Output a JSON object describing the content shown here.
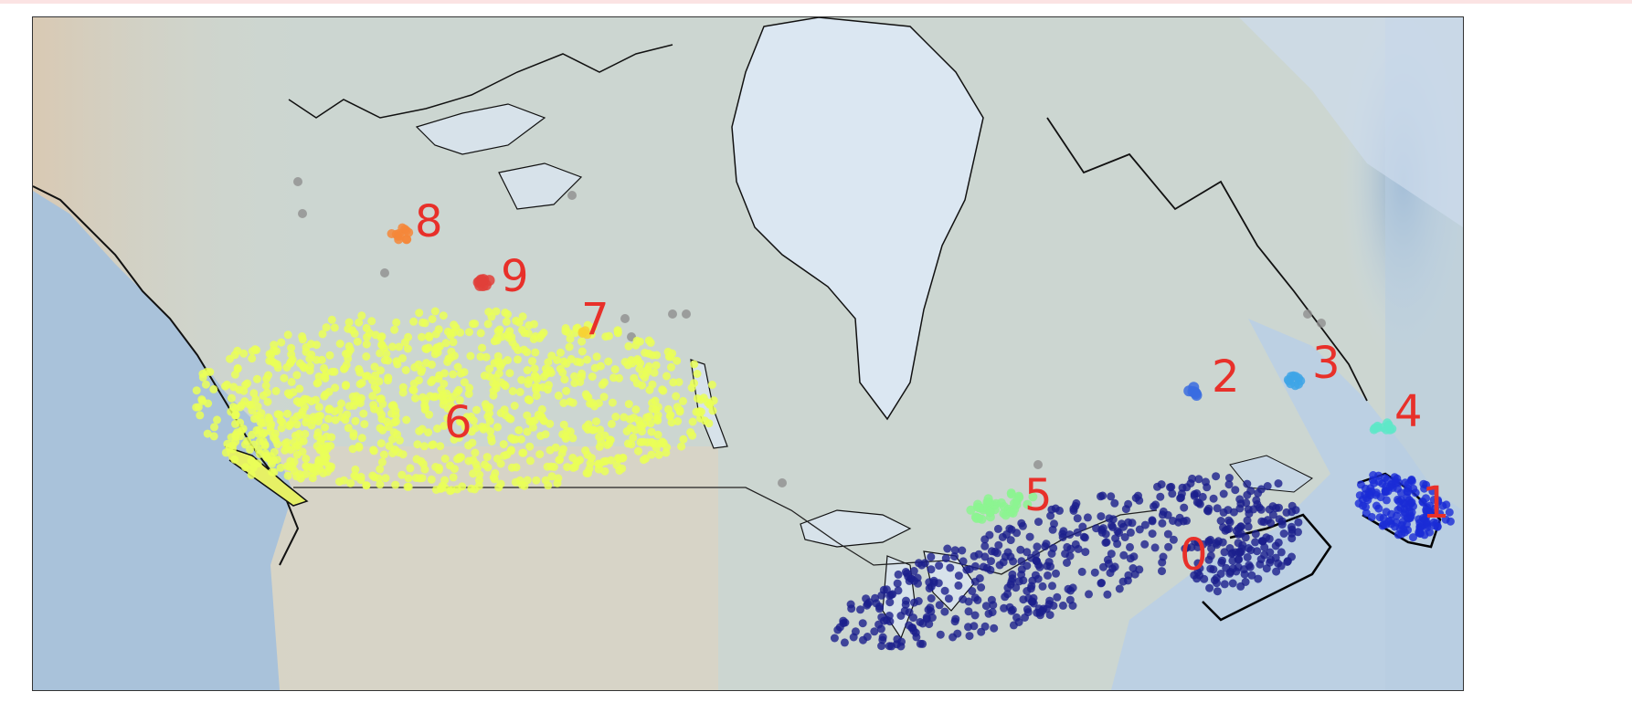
{
  "map": {
    "type": "cluster-scatter-map",
    "region": "Canada",
    "clusters": [
      {
        "label": "0",
        "color": "#1c1f8c"
      },
      {
        "label": "1",
        "color": "#1a2cd6"
      },
      {
        "label": "2",
        "color": "#3a6ce0"
      },
      {
        "label": "3",
        "color": "#3ea4e6"
      },
      {
        "label": "4",
        "color": "#5ee8c8"
      },
      {
        "label": "5",
        "color": "#8cf590"
      },
      {
        "label": "6",
        "color": "#eaff57"
      },
      {
        "label": "7",
        "color": "#f7d234"
      },
      {
        "label": "8",
        "color": "#f5873a"
      },
      {
        "label": "9",
        "color": "#e0403a"
      }
    ],
    "noise_color": "#8f8f8f",
    "label_color": "#e8302a"
  }
}
